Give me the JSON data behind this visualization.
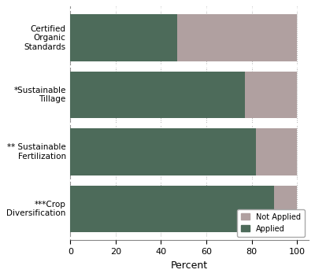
{
  "categories": [
    "***Crop\nDiversification",
    "** Sustainable\nFertilization",
    "*Sustainable\nTillage",
    "Certified\nOrganic\nStandards"
  ],
  "applied": [
    90,
    82,
    77,
    47
  ],
  "not_applied": [
    10,
    18,
    23,
    53
  ],
  "applied_color": "#4d6b5a",
  "not_applied_color": "#b0a0a0",
  "xlabel": "Percent",
  "xlim": [
    0,
    105
  ],
  "xticks": [
    0,
    20,
    40,
    60,
    80,
    100
  ],
  "background_color": "#ffffff",
  "grid_color": "#aaaaaa",
  "bar_height": 0.82
}
